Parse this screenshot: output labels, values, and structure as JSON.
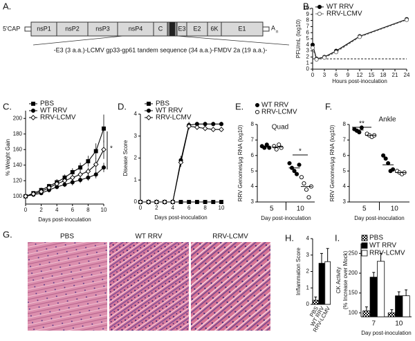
{
  "diagram": {
    "label": "A.",
    "cap": "5'CAP",
    "segments": [
      "nsP1",
      "nsP2",
      "nsP3",
      "nsP4",
      "C",
      "E3",
      "E2",
      "6K",
      "E1"
    ],
    "poly_a": "A",
    "poly_a_sub": "n",
    "insert": "-E3 (3 a.a.)-LCMV gp33-gp61 tandem sequence (34 a.a.)-FMDV 2a (19 a.a.)-"
  },
  "histology": {
    "label": "G.",
    "panels": [
      "PBS",
      "WT RRV",
      "RRV-LCMV"
    ]
  },
  "chart_data": [
    {
      "type": "line",
      "label": "B.",
      "ylabel": "PFU/mL (log10)",
      "xlabel": "Hours post-inoculation",
      "x": [
        0,
        1,
        3,
        6,
        12,
        24
      ],
      "xlim": [
        0,
        24
      ],
      "xticks": [
        0,
        3,
        6,
        9,
        12,
        15,
        18,
        21,
        24
      ],
      "ylim": [
        0,
        10
      ],
      "yticks": [
        0,
        1,
        2,
        3,
        4,
        5,
        6,
        7,
        8,
        9,
        10
      ],
      "reference_y": 1.7,
      "legend": "top-left",
      "series": [
        {
          "name": "WT RRV",
          "color": "#000000",
          "marker": "circle",
          "marker_fill": "#000000",
          "line_style": "solid",
          "values": [
            4.0,
            1.7,
            2.0,
            3.0,
            5.4,
            8.2
          ]
        },
        {
          "name": "RRV-LCMV",
          "color": "#666666",
          "marker": "circle",
          "marker_fill": "#ffffff",
          "line_style": "dashed",
          "values": [
            3.5,
            1.6,
            1.9,
            2.8,
            5.3,
            8.1
          ]
        }
      ]
    },
    {
      "type": "line",
      "label": "C.",
      "ylabel": "% Weight Gain",
      "xlabel": "Days post-inoculation",
      "x": [
        0,
        1,
        2,
        3,
        4,
        5,
        6,
        7,
        8,
        9,
        10
      ],
      "xlim": [
        0,
        10
      ],
      "xticks": [
        0,
        2,
        4,
        6,
        8,
        10
      ],
      "ylim": [
        90,
        210
      ],
      "yticks": [
        100,
        120,
        140,
        160,
        180,
        200
      ],
      "legend": "top-left",
      "annotation": "*",
      "series": [
        {
          "name": "PBS",
          "color": "#000000",
          "marker": "square",
          "marker_fill": "#000000",
          "line_style": "solid",
          "values": [
            100,
            104,
            108,
            113,
            118,
            124,
            131,
            137,
            145,
            158,
            187
          ],
          "errors": [
            0,
            2,
            3,
            3,
            4,
            4,
            5,
            6,
            7,
            10,
            18
          ]
        },
        {
          "name": "WT RRV",
          "color": "#000000",
          "marker": "circle",
          "marker_fill": "#000000",
          "line_style": "solid",
          "values": [
            100,
            102,
            104,
            108,
            112,
            115,
            118,
            121,
            124,
            128,
            137
          ],
          "errors": [
            0,
            2,
            2,
            3,
            3,
            3,
            4,
            4,
            4,
            5,
            6
          ]
        },
        {
          "name": "RRV-LCMV",
          "color": "#000000",
          "marker": "diamond",
          "marker_fill": "#ffffff",
          "line_style": "solid",
          "values": [
            100,
            103,
            106,
            111,
            116,
            120,
            124,
            128,
            132,
            141,
            160
          ],
          "errors": [
            0,
            2,
            2,
            3,
            3,
            4,
            4,
            5,
            5,
            8,
            12
          ]
        }
      ]
    },
    {
      "type": "line",
      "label": "D.",
      "ylabel": "Disease Score",
      "xlabel": "Days post-inoculation",
      "x": [
        0,
        1,
        2,
        3,
        4,
        5,
        6,
        7,
        8,
        9,
        10
      ],
      "xlim": [
        0,
        10
      ],
      "xticks": [
        0,
        2,
        4,
        6,
        8,
        10
      ],
      "ylim": [
        0,
        4
      ],
      "yticks": [
        0,
        1,
        2,
        3,
        4
      ],
      "legend": "top-left",
      "series": [
        {
          "name": "PBS",
          "color": "#000000",
          "marker": "square",
          "marker_fill": "#000000",
          "line_style": "solid",
          "values": [
            0,
            0,
            0,
            0,
            0,
            0,
            0,
            0,
            0,
            0,
            0
          ],
          "errors": [
            0,
            0,
            0,
            0,
            0,
            0,
            0,
            0,
            0,
            0,
            0
          ]
        },
        {
          "name": "WT RRV",
          "color": "#000000",
          "marker": "circle",
          "marker_fill": "#000000",
          "line_style": "solid",
          "values": [
            0,
            0,
            0,
            0,
            0,
            1.9,
            3.5,
            3.55,
            3.55,
            3.55,
            3.55
          ],
          "errors": [
            0,
            0,
            0,
            0,
            0,
            0.2,
            0.15,
            0.1,
            0.1,
            0.1,
            0.1
          ]
        },
        {
          "name": "RRV-LCMV",
          "color": "#000000",
          "marker": "diamond",
          "marker_fill": "#ffffff",
          "line_style": "solid",
          "values": [
            0,
            0,
            0,
            0,
            0,
            1.8,
            3.45,
            3.4,
            3.35,
            3.3,
            3.3
          ],
          "errors": [
            0,
            0,
            0,
            0,
            0,
            0.2,
            0.15,
            0.1,
            0.1,
            0.1,
            0.1
          ]
        }
      ]
    },
    {
      "type": "dot",
      "label": "E.",
      "subtitle": "Quad",
      "ylabel": "RRV Genomes/μg RNA (log10)",
      "xlabel": "Day post-inoculation",
      "categories": [
        "5",
        "10"
      ],
      "ylim": [
        3,
        8
      ],
      "yticks": [
        3,
        4,
        5,
        6,
        7,
        8
      ],
      "legend": "top-left",
      "annotation": "*",
      "series": [
        {
          "name": "WT RRV",
          "color": "#000000",
          "marker_fill": "#000000",
          "values": [
            [
              6.6,
              6.5,
              6.7,
              6.5
            ],
            [
              5.5,
              5.2,
              5.0,
              4.8,
              5.4
            ]
          ],
          "medians": [
            6.55,
            5.2
          ]
        },
        {
          "name": "RRV-LCMV",
          "color": "#000000",
          "marker_fill": "#ffffff",
          "values": [
            [
              6.6,
              6.4,
              6.7,
              6.5
            ],
            [
              4.6,
              4.2,
              3.8,
              3.3,
              4.0
            ]
          ],
          "medians": [
            6.55,
            4.0
          ]
        }
      ]
    },
    {
      "type": "dot",
      "label": "F.",
      "subtitle": "Ankle",
      "ylabel": "RRV Genomes/μg RNA (log10)",
      "xlabel": "Day post-inoculation",
      "categories": [
        "5",
        "10"
      ],
      "ylim": [
        3,
        8
      ],
      "yticks": [
        3,
        4,
        5,
        6,
        7,
        8
      ],
      "annotation": "**",
      "series": [
        {
          "name": "WT RRV",
          "color": "#000000",
          "marker_fill": "#000000",
          "values": [
            [
              7.7,
              7.6,
              7.5,
              7.8
            ],
            [
              6.0,
              5.8,
              5.5,
              5.0,
              5.1
            ]
          ],
          "medians": [
            7.65,
            5.4
          ]
        },
        {
          "name": "RRV-LCMV",
          "color": "#000000",
          "marker_fill": "#ffffff",
          "values": [
            [
              7.4,
              7.3,
              7.2,
              7.3
            ],
            [
              5.0,
              4.9,
              4.8,
              4.9
            ]
          ],
          "medians": [
            7.3,
            4.9
          ]
        }
      ]
    },
    {
      "type": "bar",
      "label": "H.",
      "ylabel": "Inflammation Score",
      "categories": [
        "PBS",
        "WT RRV",
        "RRV-LCMV"
      ],
      "values": [
        0.25,
        2.5,
        2.6
      ],
      "errors": [
        0.2,
        0.6,
        0.8
      ],
      "colors": [
        "#ffffff",
        "#000000",
        "#ffffff"
      ],
      "hatched": [
        true,
        false,
        false
      ],
      "ylim": [
        0,
        4
      ],
      "yticks": [
        0,
        1,
        2,
        3,
        4
      ]
    },
    {
      "type": "grouped_bar",
      "label": "I.",
      "ylabel": "CK Activity",
      "ylabel2": "(% Increase over Mock)",
      "xlabel": "Day post-inoculation",
      "categories": [
        "7",
        "10"
      ],
      "ylim": [
        90,
        275
      ],
      "yticks": [
        100,
        150,
        200,
        250
      ],
      "legend": "top-left",
      "series": [
        {
          "name": "PBS",
          "color": "#ffffff",
          "hatched": true,
          "values": [
            105,
            100
          ],
          "errors": [
            10,
            8
          ]
        },
        {
          "name": "WT RRV",
          "color": "#000000",
          "hatched": false,
          "values": [
            190,
            143
          ],
          "errors": [
            12,
            10
          ]
        },
        {
          "name": "RRV-LCMV",
          "color": "#ffffff",
          "hatched": false,
          "values": [
            230,
            143
          ],
          "errors": [
            20,
            15
          ]
        }
      ]
    }
  ]
}
